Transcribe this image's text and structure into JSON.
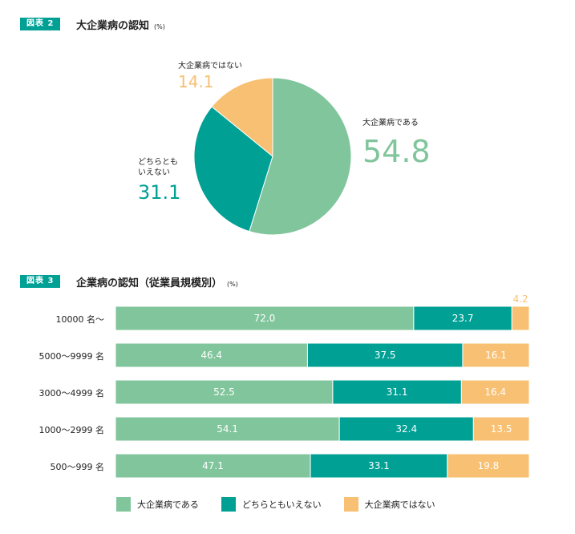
{
  "colors": {
    "green": "#80c59b",
    "teal": "#00a095",
    "orange": "#f7c072"
  },
  "figure2": {
    "badge": "図表 2",
    "title": "大企業病の認知",
    "unit": "(%)"
  },
  "figure3": {
    "badge": "図表 3",
    "title": "企業病の認知（従業員規模別）",
    "unit": "(%)"
  },
  "chart_data": [
    {
      "type": "pie",
      "title": "大企業病の認知",
      "slices": [
        {
          "label": "大企業病である",
          "value": 54.8,
          "color": "#80c59b"
        },
        {
          "label": "どちらとも\nいえない",
          "value": 31.1,
          "color": "#00a095"
        },
        {
          "label": "大企業病ではない",
          "value": 14.1,
          "color": "#f7c072"
        }
      ]
    },
    {
      "type": "bar",
      "orientation": "horizontal",
      "stacked": true,
      "title": "企業病の認知（従業員規模別）",
      "categories": [
        "10000 名〜",
        "5000〜9999 名",
        "3000〜4999 名",
        "1000〜2999 名",
        "500〜999 名"
      ],
      "series": [
        {
          "name": "大企業病である",
          "color": "#80c59b",
          "values": [
            72.0,
            46.4,
            52.5,
            54.1,
            47.1
          ]
        },
        {
          "name": "どちらともいえない",
          "color": "#00a095",
          "values": [
            23.7,
            37.5,
            31.1,
            32.4,
            33.1
          ]
        },
        {
          "name": "大企業病ではない",
          "color": "#f7c072",
          "values": [
            4.2,
            16.1,
            16.4,
            13.5,
            19.8
          ]
        }
      ],
      "legend": "bottom"
    }
  ]
}
